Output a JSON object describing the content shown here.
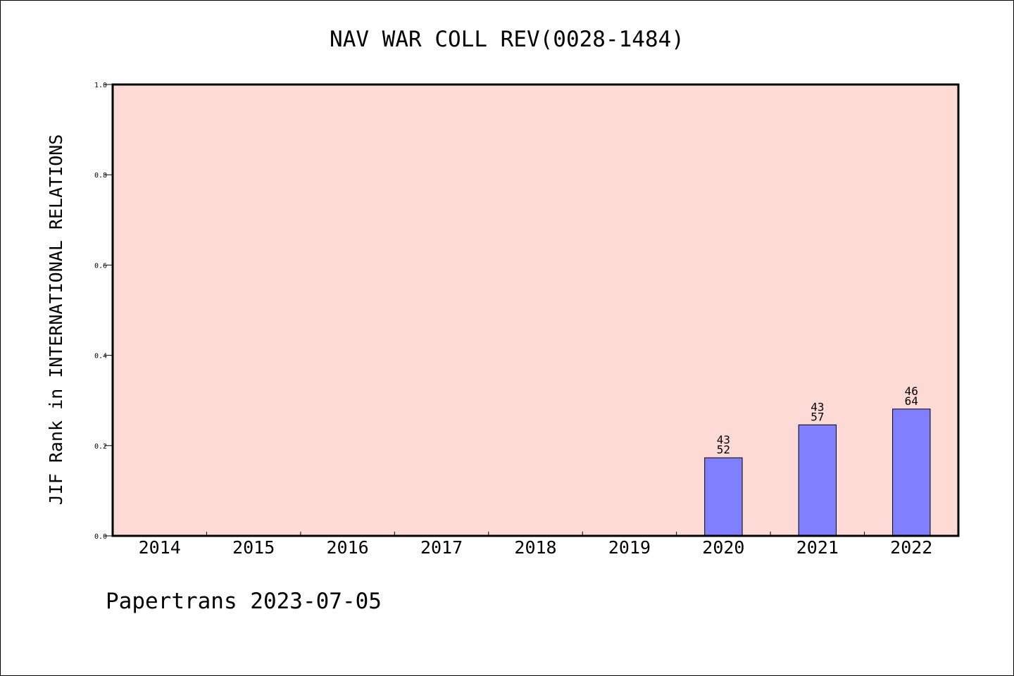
{
  "chart_data": {
    "type": "bar",
    "title": "NAV WAR COLL REV(0028-1484)",
    "xlabel": "",
    "ylabel": "JIF Rank in INTERNATIONAL RELATIONS",
    "categories": [
      "2014",
      "2015",
      "2016",
      "2017",
      "2018",
      "2019",
      "2020",
      "2021",
      "2022"
    ],
    "values": [
      null,
      null,
      null,
      null,
      null,
      null,
      0.173,
      0.246,
      0.281
    ],
    "bar_labels": [
      null,
      null,
      null,
      null,
      null,
      null,
      {
        "top": "43",
        "bottom": "52"
      },
      {
        "top": "43",
        "bottom": "57"
      },
      {
        "top": "46",
        "bottom": "64"
      }
    ],
    "ylim": [
      0,
      1.0
    ],
    "yticks": [
      "0.0",
      "0.2",
      "0.4",
      "0.6",
      "0.8",
      "1.0"
    ],
    "grid": false,
    "colors": {
      "plot_background": "#fddad6",
      "bar_fill": "#8080ff",
      "bar_edge": "#000000"
    }
  },
  "footer": {
    "text": "Papertrans 2023-07-05"
  }
}
